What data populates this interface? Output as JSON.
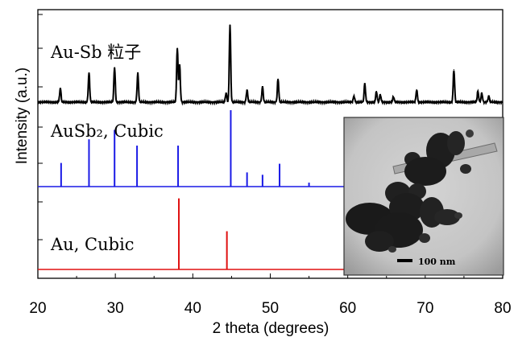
{
  "chart_data": {
    "type": "line",
    "xlabel": "2 theta (degrees)",
    "ylabel": "Intensity (a.u.)",
    "xlim": [
      20,
      80
    ],
    "xticks": [
      20,
      30,
      40,
      50,
      60,
      70,
      80
    ],
    "grid": false,
    "colors": {
      "measured": "#000000",
      "ausb2": "#1a1ae6",
      "au": "#e01010"
    },
    "panels": [
      {
        "label": "Au-Sb 粒子",
        "kind": "measured pattern",
        "peaks": [
          {
            "x": 22.9,
            "y": 0.18
          },
          {
            "x": 26.6,
            "y": 0.38
          },
          {
            "x": 29.9,
            "y": 0.45
          },
          {
            "x": 32.9,
            "y": 0.38
          },
          {
            "x": 38.0,
            "y": 0.7
          },
          {
            "x": 38.3,
            "y": 0.48
          },
          {
            "x": 44.3,
            "y": 0.12
          },
          {
            "x": 44.8,
            "y": 1.0
          },
          {
            "x": 47.0,
            "y": 0.16
          },
          {
            "x": 49.0,
            "y": 0.2
          },
          {
            "x": 51.0,
            "y": 0.3
          },
          {
            "x": 60.8,
            "y": 0.08
          },
          {
            "x": 62.2,
            "y": 0.24
          },
          {
            "x": 63.7,
            "y": 0.14
          },
          {
            "x": 64.2,
            "y": 0.1
          },
          {
            "x": 65.9,
            "y": 0.07
          },
          {
            "x": 68.9,
            "y": 0.16
          },
          {
            "x": 73.7,
            "y": 0.42
          },
          {
            "x": 76.8,
            "y": 0.14
          },
          {
            "x": 77.3,
            "y": 0.12
          },
          {
            "x": 78.2,
            "y": 0.08
          }
        ]
      },
      {
        "label": "AuSb₂, Cubic",
        "kind": "reference",
        "peaks": [
          {
            "x": 23.0,
            "y": 0.3
          },
          {
            "x": 26.6,
            "y": 0.6
          },
          {
            "x": 29.9,
            "y": 0.72
          },
          {
            "x": 32.8,
            "y": 0.52
          },
          {
            "x": 38.1,
            "y": 0.52
          },
          {
            "x": 44.9,
            "y": 0.97
          },
          {
            "x": 47.0,
            "y": 0.18
          },
          {
            "x": 49.0,
            "y": 0.15
          },
          {
            "x": 51.2,
            "y": 0.29
          },
          {
            "x": 55.0,
            "y": 0.05
          }
        ]
      },
      {
        "label": "Au, Cubic",
        "kind": "reference",
        "peaks": [
          {
            "x": 38.2,
            "y": 0.93
          },
          {
            "x": 44.4,
            "y": 0.5
          }
        ]
      }
    ],
    "inset": {
      "kind": "TEM micrograph",
      "scale_bar": "100 nm"
    }
  }
}
